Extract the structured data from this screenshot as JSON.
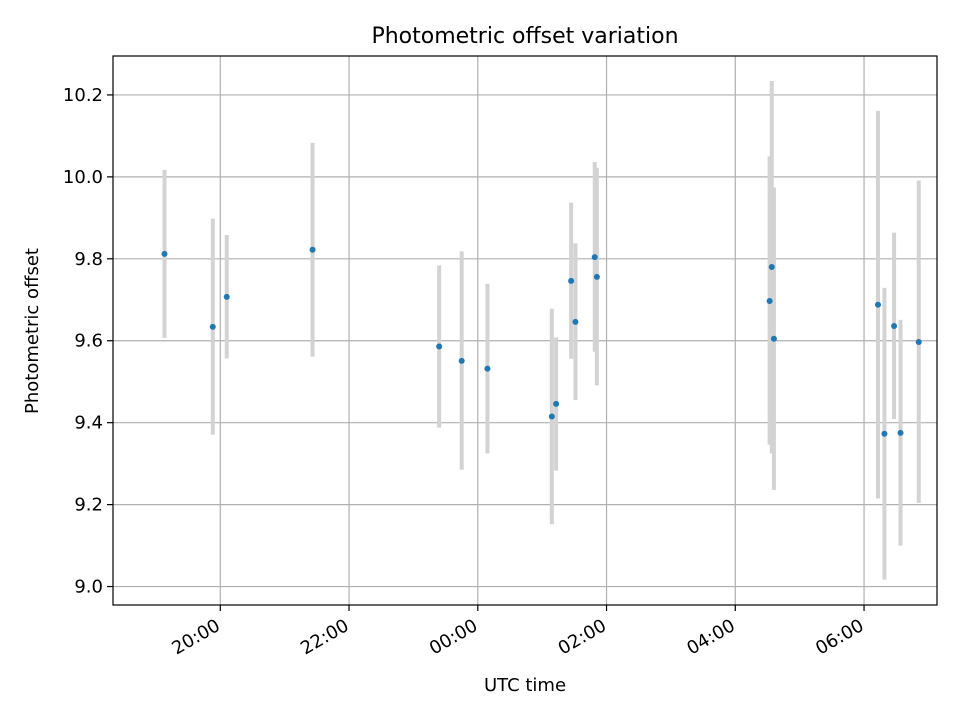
{
  "chart_data": {
    "type": "scatter",
    "title": "Photometric offset variation",
    "xlabel": "UTC time",
    "ylabel": "Photometric offset",
    "x_ticks": [
      "20:00",
      "22:00",
      "00:00",
      "02:00",
      "04:00",
      "06:00"
    ],
    "y_ticks": [
      "9.0",
      "9.2",
      "9.4",
      "9.6",
      "9.8",
      "10.0",
      "10.2"
    ],
    "xlim": [
      "18:20",
      "07:08"
    ],
    "ylim": [
      8.955,
      10.295
    ],
    "grid": true,
    "colors": {
      "marker": "#1f77b4",
      "errorbar": "#d3d3d3",
      "grid": "#b0b0b0"
    },
    "points": [
      {
        "t": "19:08",
        "y": 9.812,
        "err_low": 9.607,
        "err_high": 10.017
      },
      {
        "t": "19:53",
        "y": 9.634,
        "err_low": 9.371,
        "err_high": 9.898
      },
      {
        "t": "20:06",
        "y": 9.707,
        "err_low": 9.557,
        "err_high": 9.858
      },
      {
        "t": "21:26",
        "y": 9.822,
        "err_low": 9.561,
        "err_high": 10.083
      },
      {
        "t": "23:24",
        "y": 9.586,
        "err_low": 9.388,
        "err_high": 9.784
      },
      {
        "t": "23:45",
        "y": 9.551,
        "err_low": 9.285,
        "err_high": 9.818
      },
      {
        "t": "00:09",
        "y": 9.532,
        "err_low": 9.325,
        "err_high": 9.739
      },
      {
        "t": "01:09",
        "y": 9.415,
        "err_low": 9.152,
        "err_high": 9.678
      },
      {
        "t": "01:13",
        "y": 9.446,
        "err_low": 9.283,
        "err_high": 9.608
      },
      {
        "t": "01:27",
        "y": 9.746,
        "err_low": 9.556,
        "err_high": 9.937
      },
      {
        "t": "01:31",
        "y": 9.646,
        "err_low": 9.455,
        "err_high": 9.838
      },
      {
        "t": "01:49",
        "y": 9.804,
        "err_low": 9.573,
        "err_high": 10.036
      },
      {
        "t": "01:51",
        "y": 9.756,
        "err_low": 9.491,
        "err_high": 10.022
      },
      {
        "t": "04:32",
        "y": 9.697,
        "err_low": 9.346,
        "err_high": 10.05
      },
      {
        "t": "04:34",
        "y": 9.78,
        "err_low": 9.325,
        "err_high": 10.234
      },
      {
        "t": "04:36",
        "y": 9.605,
        "err_low": 9.236,
        "err_high": 9.974
      },
      {
        "t": "06:13",
        "y": 9.688,
        "err_low": 9.215,
        "err_high": 10.161
      },
      {
        "t": "06:19",
        "y": 9.373,
        "err_low": 9.017,
        "err_high": 9.729
      },
      {
        "t": "06:28",
        "y": 9.636,
        "err_low": 9.409,
        "err_high": 9.864
      },
      {
        "t": "06:34",
        "y": 9.375,
        "err_low": 9.1,
        "err_high": 9.651
      },
      {
        "t": "06:51",
        "y": 9.597,
        "err_low": 9.204,
        "err_high": 9.991
      }
    ]
  }
}
